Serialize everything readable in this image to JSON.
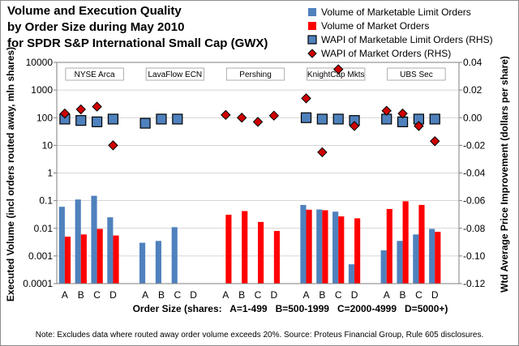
{
  "chart_data": {
    "type": "bar",
    "title_lines": [
      "Volume and Execution Quality",
      "by Order Size during May 2010",
      "for SPDR S&P International Small Cap (GWX)"
    ],
    "xlabel": "Order Size (shares:   A=1-499   B=500-1999   C=2000-4999   D=5000+)",
    "ylabel_left": "Executed Volume (incl orders routed away, mln shares)",
    "ylabel_right": "Wtd Average Price Improvement (dollars per share)",
    "y_left_scale": "log",
    "y_left_ticks": [
      "0.0001",
      "0.001",
      "0.01",
      "0.1",
      "1",
      "10",
      "100",
      "1000",
      "10000"
    ],
    "y_left_tick_values": [
      0.0001,
      0.001,
      0.01,
      0.1,
      1,
      10,
      100,
      1000,
      10000
    ],
    "y_right_ticks": [
      "-0.12",
      "-0.10",
      "-0.08",
      "-0.06",
      "-0.04",
      "-0.02",
      "0.00",
      "0.02",
      "0.04"
    ],
    "y_right_tick_values": [
      -0.12,
      -0.1,
      -0.08,
      -0.06,
      -0.04,
      -0.02,
      0.0,
      0.02,
      0.04
    ],
    "ylim_right": [
      -0.12,
      0.04
    ],
    "grid": true,
    "legend_position": "top-right",
    "categories": [
      "A",
      "B",
      "C",
      "D"
    ],
    "venues": [
      {
        "name": "NYSE Arca",
        "limit_volume": [
          0.06,
          0.11,
          0.15,
          0.025
        ],
        "market_volume": [
          0.005,
          0.006,
          0.0095,
          0.0055
        ],
        "wapi_limit": [
          -0.001,
          -0.002,
          -0.003,
          -0.001
        ],
        "wapi_market": [
          0.003,
          0.006,
          0.008,
          -0.02
        ]
      },
      {
        "name": "LavaFlow ECN",
        "limit_volume": [
          0.003,
          0.0035,
          0.011,
          null
        ],
        "market_volume": [
          null,
          null,
          null,
          null
        ],
        "wapi_limit": [
          -0.004,
          -0.001,
          -0.001,
          null
        ],
        "wapi_market": [
          null,
          null,
          null,
          null
        ]
      },
      {
        "name": "Pershing",
        "limit_volume": [
          null,
          null,
          null,
          null
        ],
        "market_volume": [
          0.031,
          0.042,
          0.017,
          0.008
        ],
        "wapi_limit": [
          null,
          null,
          null,
          null
        ],
        "wapi_market": [
          0.002,
          0.0,
          -0.003,
          0.0015
        ]
      },
      {
        "name": "KnightCap Mkts",
        "limit_volume": [
          0.07,
          0.048,
          0.04,
          0.0005
        ],
        "market_volume": [
          0.047,
          0.045,
          0.027,
          0.023
        ],
        "wapi_limit": [
          0.0,
          -0.001,
          -0.001,
          -0.002
        ],
        "wapi_market": [
          0.014,
          -0.025,
          0.035,
          -0.006
        ]
      },
      {
        "name": "UBS Sec",
        "limit_volume": [
          0.0016,
          0.0035,
          0.006,
          0.0095
        ],
        "market_volume": [
          0.05,
          0.095,
          0.07,
          0.0075
        ],
        "wapi_limit": [
          -0.001,
          -0.003,
          -0.001,
          -0.001
        ],
        "wapi_market": [
          0.005,
          0.003,
          -0.006,
          -0.017
        ]
      }
    ],
    "legend": [
      {
        "label": "Volume of Marketable Limit Orders",
        "symbol": "bar",
        "color": "#4f81bd"
      },
      {
        "label": "Volume of Market Orders",
        "symbol": "bar",
        "color": "#ff0000"
      },
      {
        "label": "WAPI of Marketable Limit Orders (RHS)",
        "symbol": "square",
        "color": "#4f81bd"
      },
      {
        "label": "WAPI of Market Orders (RHS)",
        "symbol": "diamond",
        "color": "#d00000"
      }
    ],
    "note": "Note: Excludes data where routed away order volume exceeds 20%. Source: Proteus Financial Group, Rule 605 disclosures.",
    "colors": {
      "limit": "#4f81bd",
      "market": "#ff0000",
      "square_fill": "#4f81bd",
      "diamond_fill": "#d00000"
    }
  }
}
